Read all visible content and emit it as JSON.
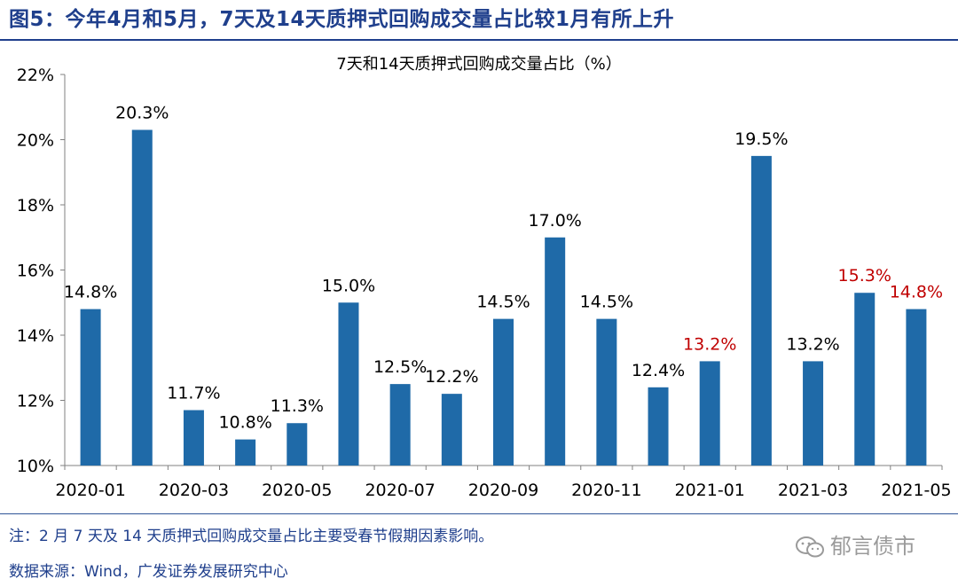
{
  "figure_title": "图5：今年4月和5月，7天及14天质押式回购成交量占比较1月有所上升",
  "note": "注：2 月 7 天及 14 天质押式回购成交量占比主要受春节假期因素影响。",
  "source": "数据来源：Wind，广发证券发展研究中心",
  "watermark": "郁言债市",
  "watermark_icon": "wechat-icon",
  "colors": {
    "bar": "#1f6aa8",
    "label": "#000000",
    "highlight_label": "#c00000",
    "title": "#1f3f8c"
  },
  "chart_data": {
    "type": "bar",
    "title": "7天和14天质押式回购成交量占比（%）",
    "categories": [
      "2020-01",
      "2020-02",
      "2020-03",
      "2020-04",
      "2020-05",
      "2020-06",
      "2020-07",
      "2020-08",
      "2020-09",
      "2020-10",
      "2020-11",
      "2020-12",
      "2021-01",
      "2021-02",
      "2021-03",
      "2021-04",
      "2021-05"
    ],
    "values": [
      14.8,
      20.3,
      11.7,
      10.8,
      11.3,
      15.0,
      12.5,
      12.2,
      14.5,
      17.0,
      14.5,
      12.4,
      13.2,
      19.5,
      13.2,
      15.3,
      14.8
    ],
    "data_labels": [
      "14.8%",
      "20.3%",
      "11.7%",
      "10.8%",
      "11.3%",
      "15.0%",
      "12.5%",
      "12.2%",
      "14.5%",
      "17.0%",
      "14.5%",
      "12.4%",
      "13.2%",
      "19.5%",
      "13.2%",
      "15.3%",
      "14.8%"
    ],
    "highlight_labels": [
      false,
      false,
      false,
      false,
      false,
      false,
      false,
      false,
      false,
      false,
      false,
      false,
      true,
      false,
      false,
      true,
      true
    ],
    "x_tick_labels": [
      "2020-01",
      "2020-03",
      "2020-05",
      "2020-07",
      "2020-09",
      "2020-11",
      "2021-01",
      "2021-03",
      "2021-05"
    ],
    "y_tick_labels": [
      "10%",
      "12%",
      "14%",
      "16%",
      "18%",
      "20%",
      "22%"
    ],
    "y_ticks": [
      10,
      12,
      14,
      16,
      18,
      20,
      22
    ],
    "ylim": [
      10,
      22
    ],
    "xlabel": "",
    "ylabel": "",
    "grid": false,
    "legend": "none"
  }
}
